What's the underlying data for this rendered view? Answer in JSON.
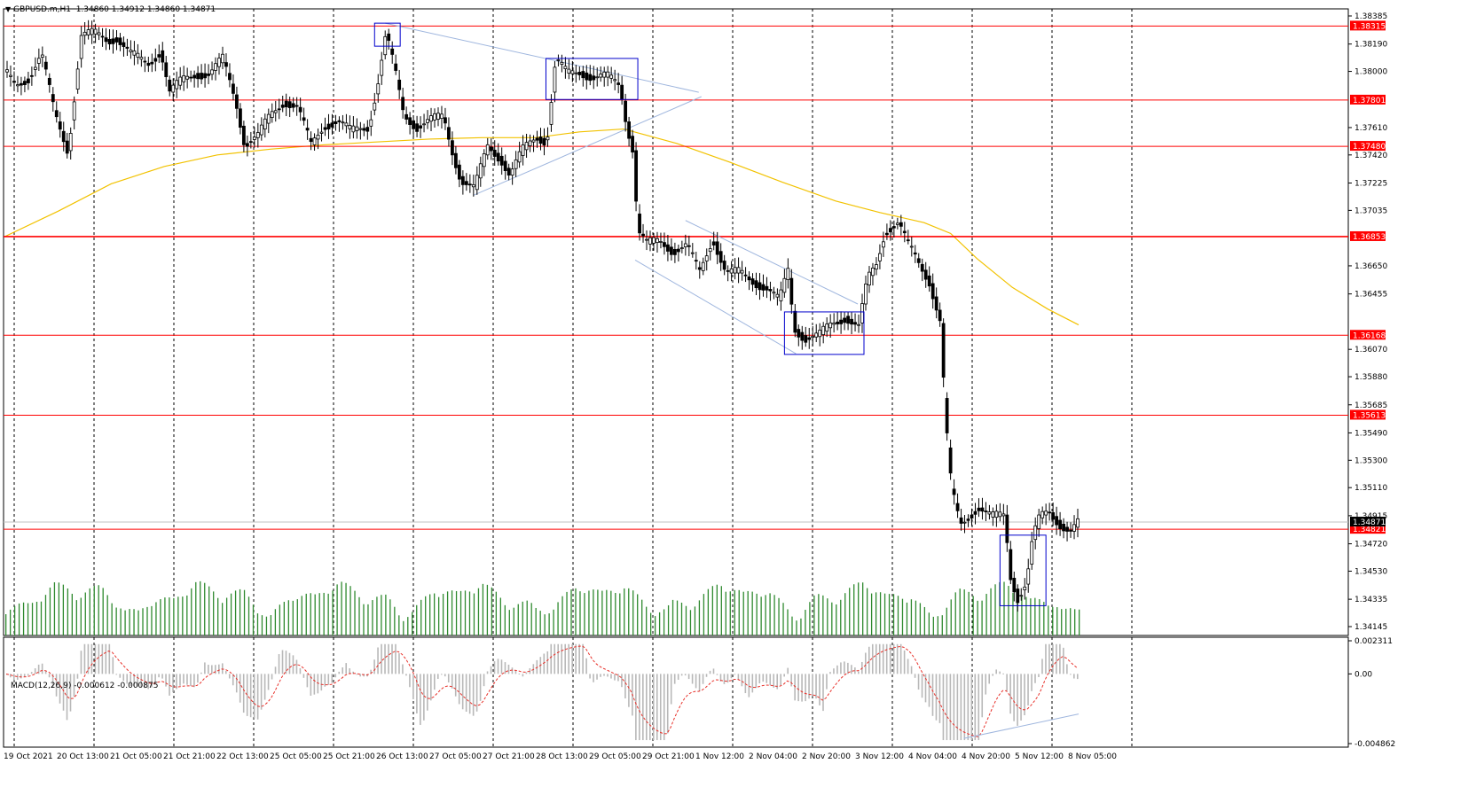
{
  "header": {
    "symbol": "GBPUSD.m,H1",
    "ohlc": "1.34860 1.34912 1.34860 1.34871"
  },
  "macd": {
    "label": "MACD(12,26,9) -0.000612 -0.000875",
    "yticks": [
      "0.002311",
      "0.00",
      "-0.004862"
    ],
    "ylim": [
      -0.004862,
      0.002311
    ]
  },
  "colors": {
    "bull": "#000000",
    "bear": "#000000",
    "level_line": "#ff0000",
    "ma": "#f2c200",
    "volume": "#2f8a2f",
    "macd_hist": "#b8b8b8",
    "macd_signal": "#e8312a",
    "box": "#0000cc",
    "trendline": "#9fb6de",
    "grid": "#000000"
  },
  "chart_data": {
    "type": "candlestick",
    "symbol": "GBPUSD.m",
    "timeframe": "H1",
    "ylim": [
      1.34145,
      1.38385
    ],
    "yticks": [
      "1.38385",
      "1.38190",
      "1.38000",
      "1.37610",
      "1.37420",
      "1.37225",
      "1.37035",
      "1.36650",
      "1.36455",
      "1.36070",
      "1.35880",
      "1.35685",
      "1.35490",
      "1.35300",
      "1.35110",
      "1.34915",
      "1.34720",
      "1.34530",
      "1.34335",
      "1.34145"
    ],
    "xticks": [
      "19 Oct 2021",
      "20 Oct 13:00",
      "21 Oct 05:00",
      "21 Oct 21:00",
      "22 Oct 13:00",
      "25 Oct 05:00",
      "25 Oct 21:00",
      "26 Oct 13:00",
      "27 Oct 05:00",
      "27 Oct 21:00",
      "28 Oct 13:00",
      "29 Oct 05:00",
      "29 Oct 21:00",
      "1 Nov 12:00",
      "2 Nov 04:00",
      "2 Nov 20:00",
      "3 Nov 12:00",
      "4 Nov 04:00",
      "4 Nov 20:00",
      "5 Nov 12:00",
      "8 Nov 05:00"
    ],
    "levels": [
      "1.38315",
      "1.37801",
      "1.37480",
      "1.36853",
      "1.36168",
      "1.35613",
      "1.34821"
    ],
    "current_price": "1.34871",
    "path": [
      [
        0,
        1.3798
      ],
      [
        10,
        1.379
      ],
      [
        25,
        1.3796
      ],
      [
        40,
        1.3812
      ],
      [
        55,
        1.377
      ],
      [
        70,
        1.3745
      ],
      [
        85,
        1.3825
      ],
      [
        100,
        1.3826
      ],
      [
        115,
        1.3822
      ],
      [
        125,
        1.3824
      ],
      [
        140,
        1.3812
      ],
      [
        160,
        1.3805
      ],
      [
        175,
        1.3815
      ],
      [
        185,
        1.3785
      ],
      [
        200,
        1.3794
      ],
      [
        215,
        1.3799
      ],
      [
        230,
        1.3798
      ],
      [
        245,
        1.3808
      ],
      [
        260,
        1.378
      ],
      [
        270,
        1.375
      ],
      [
        285,
        1.3755
      ],
      [
        300,
        1.377
      ],
      [
        315,
        1.378
      ],
      [
        330,
        1.3775
      ],
      [
        345,
        1.3748
      ],
      [
        360,
        1.3763
      ],
      [
        375,
        1.3766
      ],
      [
        390,
        1.3758
      ],
      [
        410,
        1.3762
      ],
      [
        420,
        1.379
      ],
      [
        430,
        1.3826
      ],
      [
        440,
        1.38
      ],
      [
        450,
        1.377
      ],
      [
        465,
        1.3762
      ],
      [
        480,
        1.3766
      ],
      [
        495,
        1.3768
      ],
      [
        505,
        1.3745
      ],
      [
        515,
        1.3725
      ],
      [
        530,
        1.3718
      ],
      [
        545,
        1.3748
      ],
      [
        560,
        1.374
      ],
      [
        570,
        1.3728
      ],
      [
        585,
        1.3745
      ],
      [
        600,
        1.3755
      ],
      [
        612,
        1.3752
      ],
      [
        622,
        1.3808
      ],
      [
        635,
        1.3798
      ],
      [
        650,
        1.38
      ],
      [
        665,
        1.3796
      ],
      [
        680,
        1.3796
      ],
      [
        695,
        1.379
      ],
      [
        702,
        1.3765
      ],
      [
        710,
        1.3745
      ],
      [
        715,
        1.369
      ],
      [
        725,
        1.368
      ],
      [
        740,
        1.3682
      ],
      [
        755,
        1.3676
      ],
      [
        770,
        1.3679
      ],
      [
        785,
        1.366
      ],
      [
        800,
        1.3685
      ],
      [
        815,
        1.366
      ],
      [
        830,
        1.366
      ],
      [
        845,
        1.3655
      ],
      [
        860,
        1.365
      ],
      [
        875,
        1.364
      ],
      [
        885,
        1.3662
      ],
      [
        892,
        1.3622
      ],
      [
        905,
        1.3615
      ],
      [
        920,
        1.3616
      ],
      [
        935,
        1.3625
      ],
      [
        950,
        1.363
      ],
      [
        965,
        1.3622
      ],
      [
        975,
        1.3655
      ],
      [
        985,
        1.3666
      ],
      [
        995,
        1.369
      ],
      [
        1010,
        1.3695
      ],
      [
        1020,
        1.368
      ],
      [
        1030,
        1.367
      ],
      [
        1045,
        1.3655
      ],
      [
        1058,
        1.3625
      ],
      [
        1063,
        1.356
      ],
      [
        1070,
        1.351
      ],
      [
        1080,
        1.3485
      ],
      [
        1090,
        1.3492
      ],
      [
        1100,
        1.3498
      ],
      [
        1115,
        1.349
      ],
      [
        1130,
        1.3492
      ],
      [
        1137,
        1.345
      ],
      [
        1145,
        1.3435
      ],
      [
        1155,
        1.3445
      ],
      [
        1162,
        1.3475
      ],
      [
        1170,
        1.349
      ],
      [
        1180,
        1.3495
      ],
      [
        1195,
        1.3485
      ],
      [
        1205,
        1.348
      ],
      [
        1215,
        1.3487
      ]
    ],
    "moving_average": [
      [
        0,
        1.36855
      ],
      [
        60,
        1.3703
      ],
      [
        120,
        1.3722
      ],
      [
        180,
        1.3734
      ],
      [
        240,
        1.3742
      ],
      [
        300,
        1.3746
      ],
      [
        360,
        1.3749
      ],
      [
        420,
        1.3751
      ],
      [
        480,
        1.3753
      ],
      [
        540,
        1.3754
      ],
      [
        600,
        1.3754
      ],
      [
        650,
        1.3758
      ],
      [
        700,
        1.376
      ],
      [
        760,
        1.375
      ],
      [
        820,
        1.3737
      ],
      [
        880,
        1.3723
      ],
      [
        940,
        1.371
      ],
      [
        990,
        1.3702
      ],
      [
        1040,
        1.3695
      ],
      [
        1070,
        1.36875
      ],
      [
        1100,
        1.367
      ],
      [
        1140,
        1.365
      ],
      [
        1180,
        1.3635
      ],
      [
        1215,
        1.3624
      ]
    ],
    "boxes": [
      {
        "x": [
          418,
          447
        ],
        "y": [
          1.38335,
          1.38175
        ]
      },
      {
        "x": [
          612,
          716
        ],
        "y": [
          1.3809,
          1.37805
        ]
      },
      {
        "x": [
          882,
          972
        ],
        "y": [
          1.3633,
          1.36035
        ]
      },
      {
        "x": [
          1126,
          1178
        ],
        "y": [
          1.3478,
          1.3429
        ]
      }
    ],
    "trendlines": [
      {
        "x": [
          430,
          785
        ],
        "y": [
          1.38335,
          1.37855
        ]
      },
      {
        "x": [
          530,
          788
        ],
        "y": [
          1.3714,
          1.37825
        ]
      },
      {
        "x": [
          770,
          965
        ],
        "y": [
          1.36965,
          1.36385
        ]
      },
      {
        "x": [
          713,
          895
        ],
        "y": [
          1.3669,
          1.3604
        ]
      }
    ]
  }
}
